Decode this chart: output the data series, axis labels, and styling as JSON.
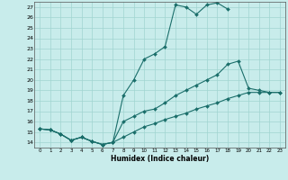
{
  "xlabel": "Humidex (Indice chaleur)",
  "xlim": [
    -0.5,
    23.5
  ],
  "ylim": [
    13.5,
    27.5
  ],
  "xticks": [
    0,
    1,
    2,
    3,
    4,
    5,
    6,
    7,
    8,
    9,
    10,
    11,
    12,
    13,
    14,
    15,
    16,
    17,
    18,
    19,
    20,
    21,
    22,
    23
  ],
  "yticks": [
    14,
    15,
    16,
    17,
    18,
    19,
    20,
    21,
    22,
    23,
    24,
    25,
    26,
    27
  ],
  "background_color": "#c8eceb",
  "grid_color": "#a0d4d0",
  "line_color": "#1a6e6a",
  "line1_x": [
    0,
    1,
    2,
    3,
    4,
    5,
    6,
    7,
    8,
    9,
    10,
    11,
    12,
    13,
    14,
    15,
    16,
    17,
    18
  ],
  "line1_y": [
    15.3,
    15.2,
    14.8,
    14.2,
    14.5,
    14.1,
    13.8,
    14.0,
    18.5,
    20.0,
    22.0,
    22.5,
    23.2,
    27.2,
    27.0,
    26.3,
    27.2,
    27.4,
    26.8
  ],
  "line2_x": [
    0,
    1,
    2,
    3,
    4,
    5,
    6,
    7,
    8,
    9,
    10,
    11,
    12,
    13,
    14,
    15,
    16,
    17,
    18,
    19,
    20,
    21,
    22,
    23
  ],
  "line2_y": [
    15.3,
    15.2,
    14.8,
    14.2,
    14.5,
    14.1,
    13.8,
    14.0,
    16.0,
    16.5,
    17.0,
    17.2,
    17.8,
    18.5,
    19.0,
    19.5,
    20.0,
    20.5,
    21.5,
    21.8,
    19.2,
    19.0,
    18.8,
    18.8
  ],
  "line3_x": [
    0,
    1,
    2,
    3,
    4,
    5,
    6,
    7,
    8,
    9,
    10,
    11,
    12,
    13,
    14,
    15,
    16,
    17,
    18,
    19,
    20,
    21,
    22,
    23
  ],
  "line3_y": [
    15.3,
    15.2,
    14.8,
    14.2,
    14.5,
    14.1,
    13.8,
    14.0,
    14.5,
    15.0,
    15.5,
    15.8,
    16.2,
    16.5,
    16.8,
    17.2,
    17.5,
    17.8,
    18.2,
    18.5,
    18.8,
    18.8,
    18.8,
    18.8
  ]
}
